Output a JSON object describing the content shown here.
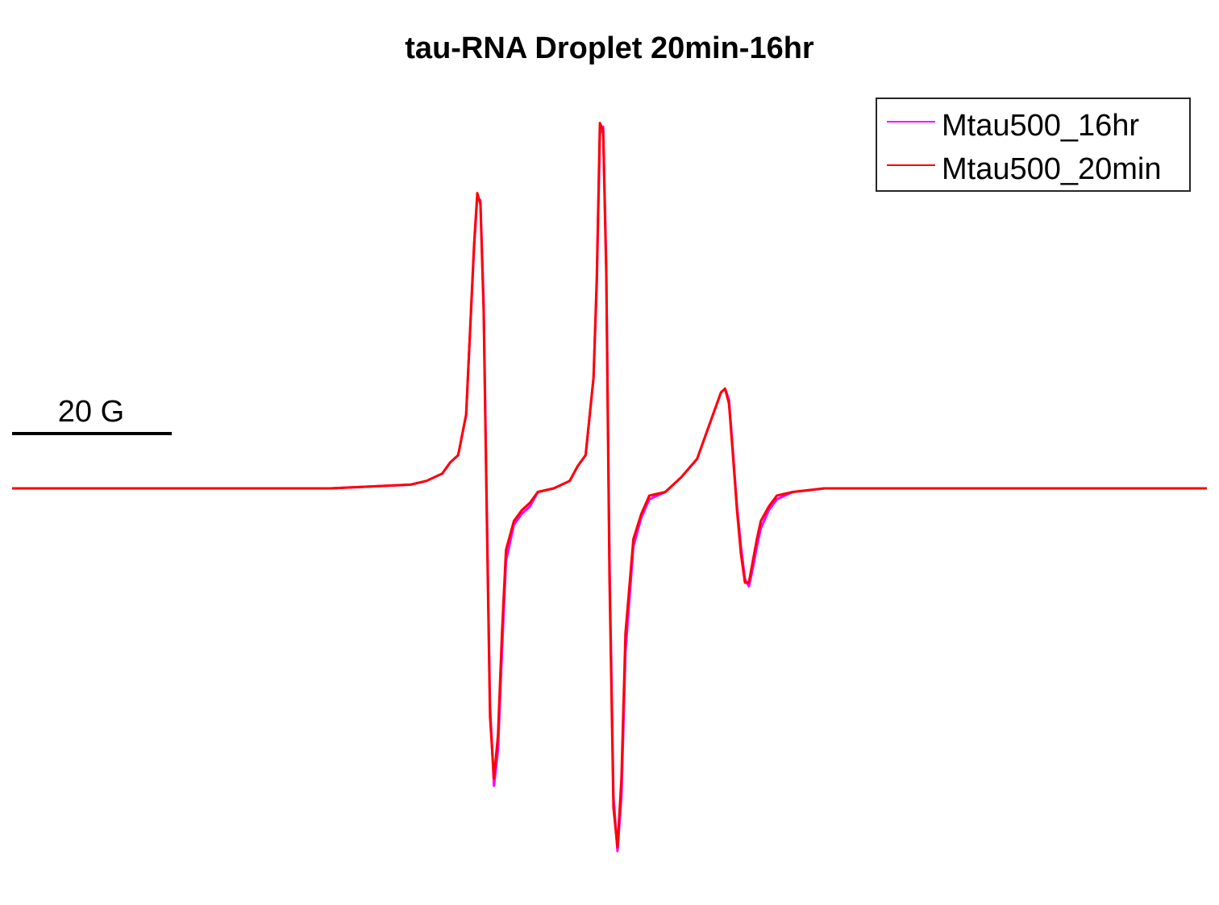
{
  "chart_data": {
    "type": "line",
    "title": "tau-RNA Droplet 20min-16hr",
    "xlabel": "",
    "ylabel": "",
    "grid": false,
    "axes_visible": false,
    "legend_position": "top-right",
    "scale_bar": {
      "label": "20 G",
      "span": 20
    },
    "xlim": [
      0,
      150
    ],
    "ylim": [
      -1.0,
      1.0
    ],
    "series": [
      {
        "name": "Mtau500_16hr",
        "color": "#ff00ff",
        "x": [
          0,
          20,
          40,
          50,
          52,
          54,
          55,
          56,
          57,
          58,
          58.4,
          58.8,
          59.2,
          59.6,
          60,
          60.5,
          61,
          61.5,
          62,
          63,
          64,
          65,
          66,
          68,
          70,
          71,
          72,
          73,
          73.4,
          73.8,
          74.2,
          74.6,
          75,
          75.5,
          76,
          76.5,
          77,
          78,
          79,
          80,
          82,
          84,
          86,
          88,
          89,
          89.5,
          90,
          90.5,
          91,
          91.5,
          92,
          92.5,
          93,
          93.5,
          94,
          95,
          96,
          98,
          100,
          102,
          105,
          110,
          130,
          150
        ],
        "y": [
          0.0,
          0.0,
          0.0,
          0.01,
          0.02,
          0.04,
          0.07,
          0.09,
          0.2,
          0.65,
          0.79,
          0.78,
          0.5,
          -0.05,
          -0.6,
          -0.82,
          -0.72,
          -0.45,
          -0.2,
          -0.1,
          -0.07,
          -0.05,
          -0.01,
          0.0,
          0.02,
          0.06,
          0.09,
          0.3,
          0.55,
          0.96,
          0.98,
          0.6,
          -0.2,
          -0.85,
          -1.0,
          -0.85,
          -0.45,
          -0.16,
          -0.08,
          -0.03,
          -0.01,
          0.03,
          0.08,
          0.2,
          0.26,
          0.27,
          0.24,
          0.1,
          -0.05,
          -0.16,
          -0.25,
          -0.27,
          -0.22,
          -0.16,
          -0.11,
          -0.06,
          -0.03,
          -0.01,
          -0.005,
          0.0,
          0.0,
          0.0,
          0.0,
          0.0
        ]
      },
      {
        "name": "Mtau500_20min",
        "color": "#ff0000",
        "x": [
          0,
          20,
          40,
          50,
          52,
          54,
          55,
          56,
          57,
          58,
          58.4,
          58.8,
          59.2,
          59.6,
          60,
          60.5,
          61,
          61.5,
          62,
          63,
          64,
          65,
          66,
          68,
          70,
          71,
          72,
          73,
          73.4,
          73.8,
          74.2,
          74.6,
          75,
          75.5,
          76,
          76.5,
          77,
          78,
          79,
          80,
          82,
          84,
          86,
          88,
          89,
          89.5,
          90,
          90.5,
          91,
          91.5,
          92,
          92.5,
          93,
          93.5,
          94,
          95,
          96,
          98,
          100,
          102,
          105,
          110,
          130,
          150
        ],
        "y": [
          0.0,
          0.0,
          0.0,
          0.01,
          0.02,
          0.04,
          0.07,
          0.09,
          0.2,
          0.66,
          0.8,
          0.77,
          0.48,
          -0.08,
          -0.63,
          -0.8,
          -0.68,
          -0.4,
          -0.17,
          -0.09,
          -0.06,
          -0.04,
          -0.01,
          0.0,
          0.02,
          0.06,
          0.09,
          0.3,
          0.57,
          0.99,
          0.97,
          0.58,
          -0.25,
          -0.88,
          -0.99,
          -0.8,
          -0.4,
          -0.14,
          -0.07,
          -0.02,
          -0.01,
          0.03,
          0.08,
          0.2,
          0.26,
          0.27,
          0.23,
          0.09,
          -0.06,
          -0.18,
          -0.26,
          -0.26,
          -0.2,
          -0.14,
          -0.09,
          -0.05,
          -0.02,
          -0.01,
          -0.005,
          0.0,
          0.0,
          0.0,
          0.0,
          0.0
        ]
      }
    ]
  }
}
